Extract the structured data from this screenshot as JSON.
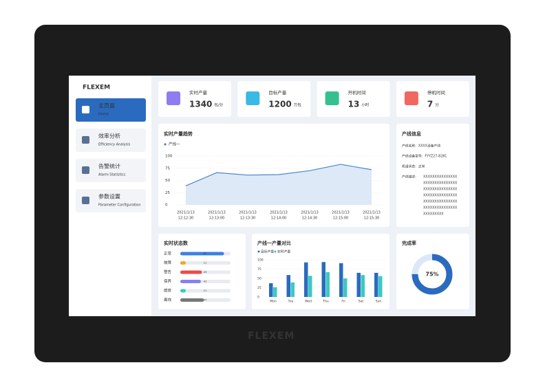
{
  "brand": "FLEXEM",
  "menu": [
    {
      "label": "主页面",
      "sub": "Home"
    },
    {
      "label": "效率分析",
      "sub": "Efficiency Analysis"
    },
    {
      "label": "告警统计",
      "sub": "Alarm Statistics"
    },
    {
      "label": "参数设置",
      "sub": "Parameter Configuration"
    }
  ],
  "kpis": [
    {
      "label": "实时产量",
      "value": 1340,
      "unit": "包/分",
      "color": "#8e7cf0"
    },
    {
      "label": "目标产量",
      "value": 1200,
      "unit": "万包",
      "color": "#39b9e6"
    },
    {
      "label": "开机时间",
      "value": 13,
      "unit": "小时",
      "color": "#35c08f"
    },
    {
      "label": "停机时间",
      "value": 7,
      "unit": "分",
      "color": "#f0685f"
    }
  ],
  "trend": {
    "type": "line",
    "title": "实时产量趋势",
    "legend": "产线一",
    "color": "#4a86c8",
    "categories": [
      {
        "date": "2021/1/13",
        "time": "12:12:30"
      },
      {
        "date": "2021/1/13",
        "time": "12:13:00"
      },
      {
        "date": "2021/1/13",
        "time": "12:13:30"
      },
      {
        "date": "2021/1/13",
        "time": "12:14:00"
      },
      {
        "date": "2021/1/13",
        "time": "12:14:30"
      },
      {
        "date": "2021/1/13",
        "time": "12:15:00"
      },
      {
        "date": "2021/1/13",
        "time": "12:15:30"
      }
    ],
    "values": [
      39,
      66,
      61,
      62,
      70,
      83,
      72
    ],
    "ylim": [
      0,
      100
    ],
    "yticks": [
      0,
      25,
      50,
      75,
      100
    ],
    "grid": true
  },
  "line_info": {
    "title": "产线信息",
    "rows": [
      {
        "label": "产线名称:",
        "value": "XXXX设备产线"
      },
      {
        "label": "产线设备型号:",
        "value": "FYYZ27-8281"
      },
      {
        "label": "机组状态:",
        "value": "正常"
      }
    ],
    "desc_label": "产线描述:",
    "desc_lines": [
      "XXXXXXXXXXXXXXX",
      "XXXXXXXXXXXXXXX",
      "XXXXXXXXXXXXXXX",
      "XXXXXXXXXXXXXXX",
      "XXXXXXXXXXXXXXX",
      "XXXXXXXXXXXXXXX",
      "XXXXXXXXX"
    ]
  },
  "status": {
    "type": "bar",
    "title": "实时状态数",
    "xlim": [
      0,
      100
    ],
    "rows": [
      {
        "label": "正常",
        "value": 87,
        "color": "#3b82e0"
      },
      {
        "label": "故障",
        "value": 11,
        "color": "#f5a623"
      },
      {
        "label": "警告",
        "value": 43,
        "color": "#ea4b4b"
      },
      {
        "label": "保养",
        "value": 41,
        "color": "#8e7cf0"
      },
      {
        "label": "维修",
        "value": 11,
        "color": "#3cc9c0"
      },
      {
        "label": "离线",
        "value": 47,
        "color": "#777777"
      }
    ]
  },
  "compare": {
    "type": "bar",
    "title": "产线一产量对比",
    "categories": [
      "Mon",
      "Tue",
      "Wed",
      "Thu",
      "Fri",
      "Sat",
      "Sun"
    ],
    "series": [
      {
        "name": "目标产量",
        "color": "#2a6bbf",
        "values": [
          37,
          59,
          93,
          94,
          91,
          65,
          65
        ]
      },
      {
        "name": "实时产量",
        "color": "#3cc9c0",
        "values": [
          26,
          39,
          57,
          67,
          50,
          59,
          56
        ]
      }
    ],
    "ylim": [
      0,
      100
    ],
    "yticks": [
      0,
      25,
      50,
      75,
      100
    ]
  },
  "completion": {
    "type": "pie",
    "title": "完成率",
    "value": 75,
    "value_label": "75%",
    "color": "#2a6bbf"
  }
}
